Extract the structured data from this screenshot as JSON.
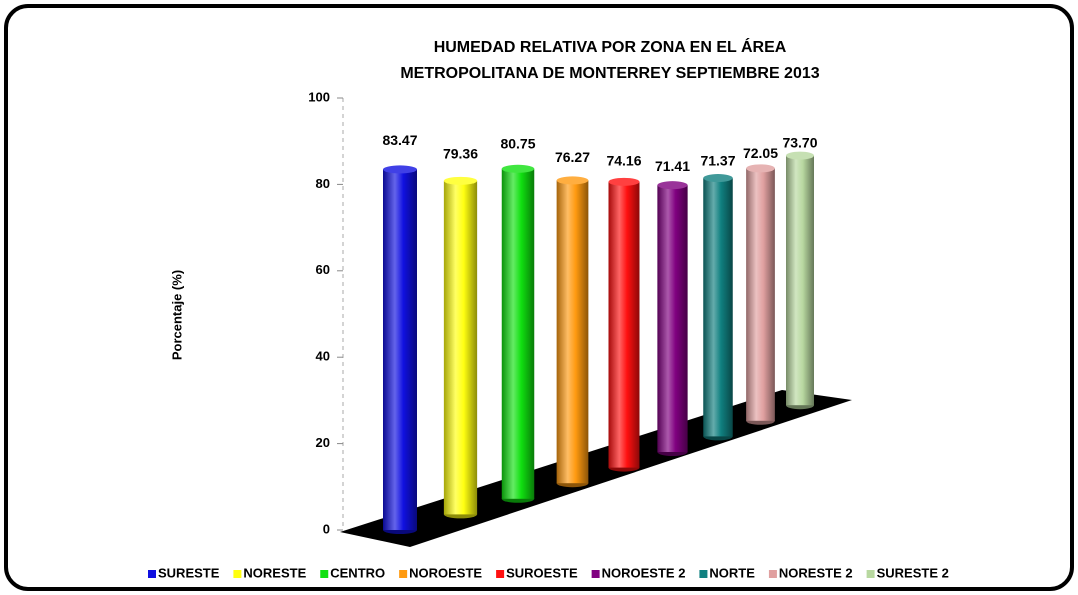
{
  "chart_data": {
    "type": "bar3d",
    "title": [
      "HUMEDAD RELATIVA POR ZONA EN EL ÁREA",
      "METROPOLITANA  DE MONTERREY  SEPTIEMBRE 2013"
    ],
    "ylabel": "Porcentaje (%)",
    "categories": [
      "SURESTE",
      "NORESTE",
      "CENTRO",
      "NOROESTE",
      "SUROESTE",
      "NOROESTE 2",
      "NORTE",
      "NORESTE 2",
      "SURESTE 2"
    ],
    "values": [
      83.47,
      79.36,
      80.75,
      76.27,
      74.16,
      71.41,
      71.37,
      72.05,
      73.7
    ],
    "value_labels": [
      "83.47",
      "79.36",
      "80.75",
      "76.27",
      "74.16",
      "71.41",
      "71.37",
      "72.05",
      "73.70"
    ],
    "colors": [
      "#1010e0",
      "#ffff10",
      "#10e010",
      "#ff9a10",
      "#ff1010",
      "#800080",
      "#108080",
      "#e0a0a0",
      "#b8d8a0"
    ],
    "ylim": [
      0,
      100
    ],
    "yticks": [
      0,
      20,
      40,
      60,
      80,
      100
    ]
  }
}
